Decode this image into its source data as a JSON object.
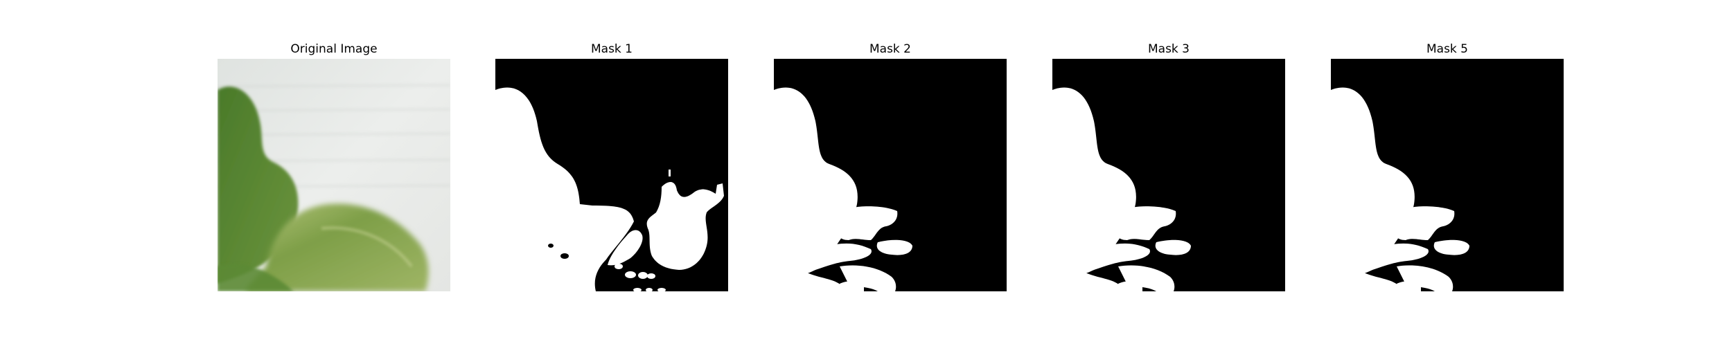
{
  "panels": [
    {
      "title": "Original Image"
    },
    {
      "title": "Mask 1"
    },
    {
      "title": "Mask 2"
    },
    {
      "title": "Mask 3"
    },
    {
      "title": "Mask 5"
    }
  ],
  "colors": {
    "background": "#ffffff",
    "mask_background": "#000000",
    "mask_foreground": "#ffffff",
    "wall": "#e9ecea",
    "leaf_dark": "#4e7a2b",
    "leaf_mid": "#6f9440",
    "leaf_light": "#a9bd6a"
  }
}
